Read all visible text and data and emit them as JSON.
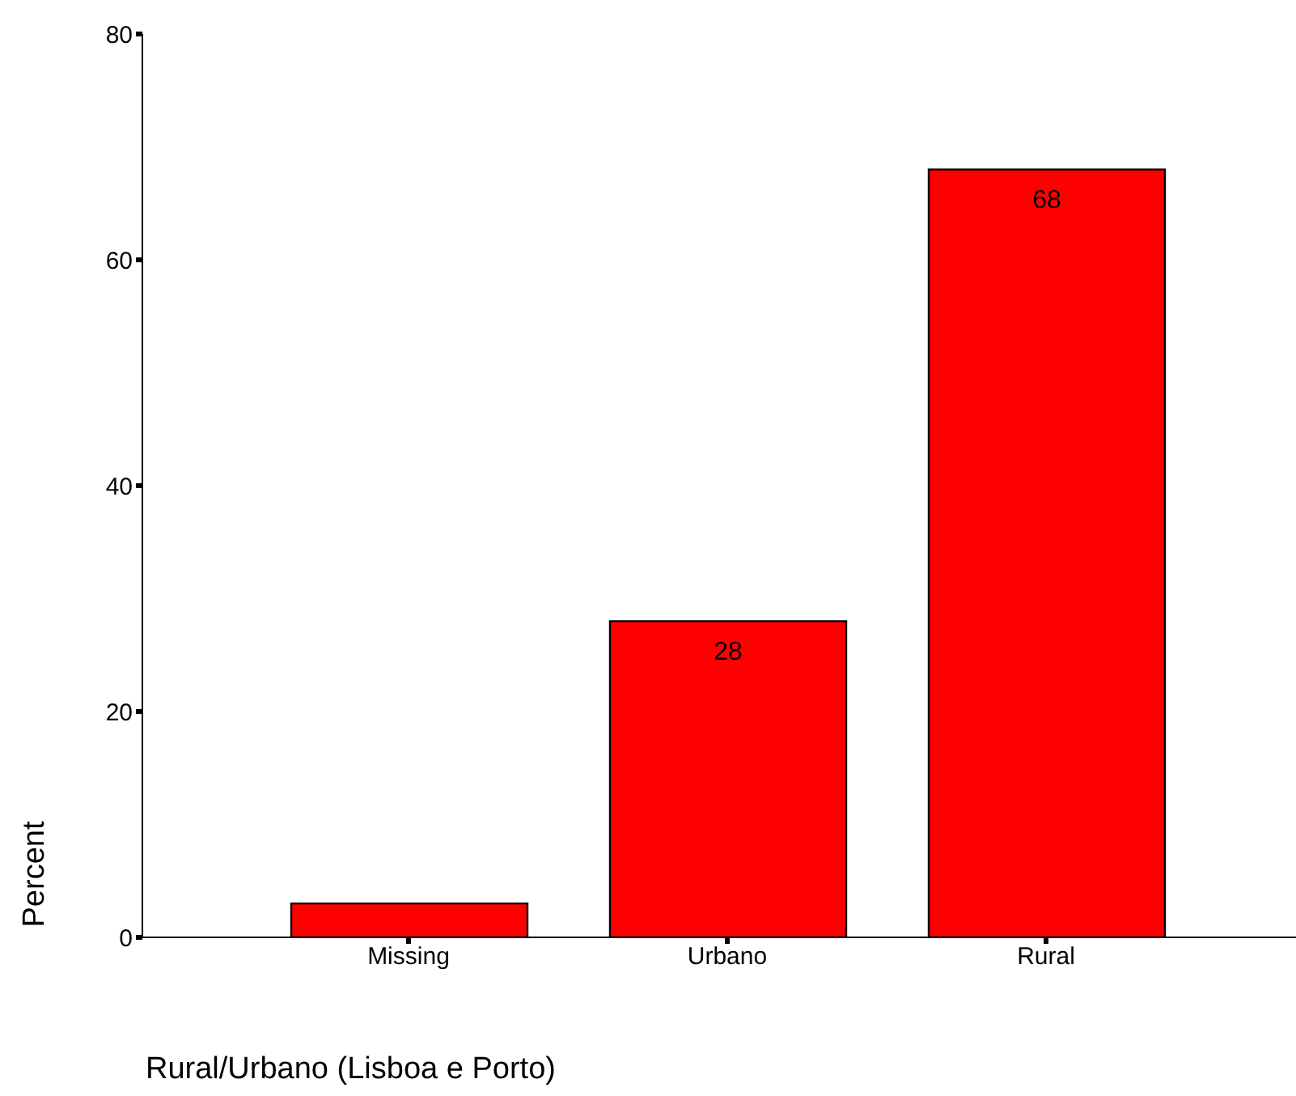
{
  "chart_data": {
    "type": "bar",
    "xlabel": "Rural/Urbano (Lisboa e Porto)",
    "ylabel": "Percent",
    "categories": [
      "Missing",
      "Urbano",
      "Rural"
    ],
    "values": [
      3,
      28,
      68
    ],
    "value_labels": [
      null,
      "28",
      "68"
    ],
    "color": "#ff0000",
    "ylim": [
      0,
      80
    ],
    "yticks": [
      0,
      20,
      40,
      60,
      80
    ],
    "grid": false,
    "legend": false
  }
}
